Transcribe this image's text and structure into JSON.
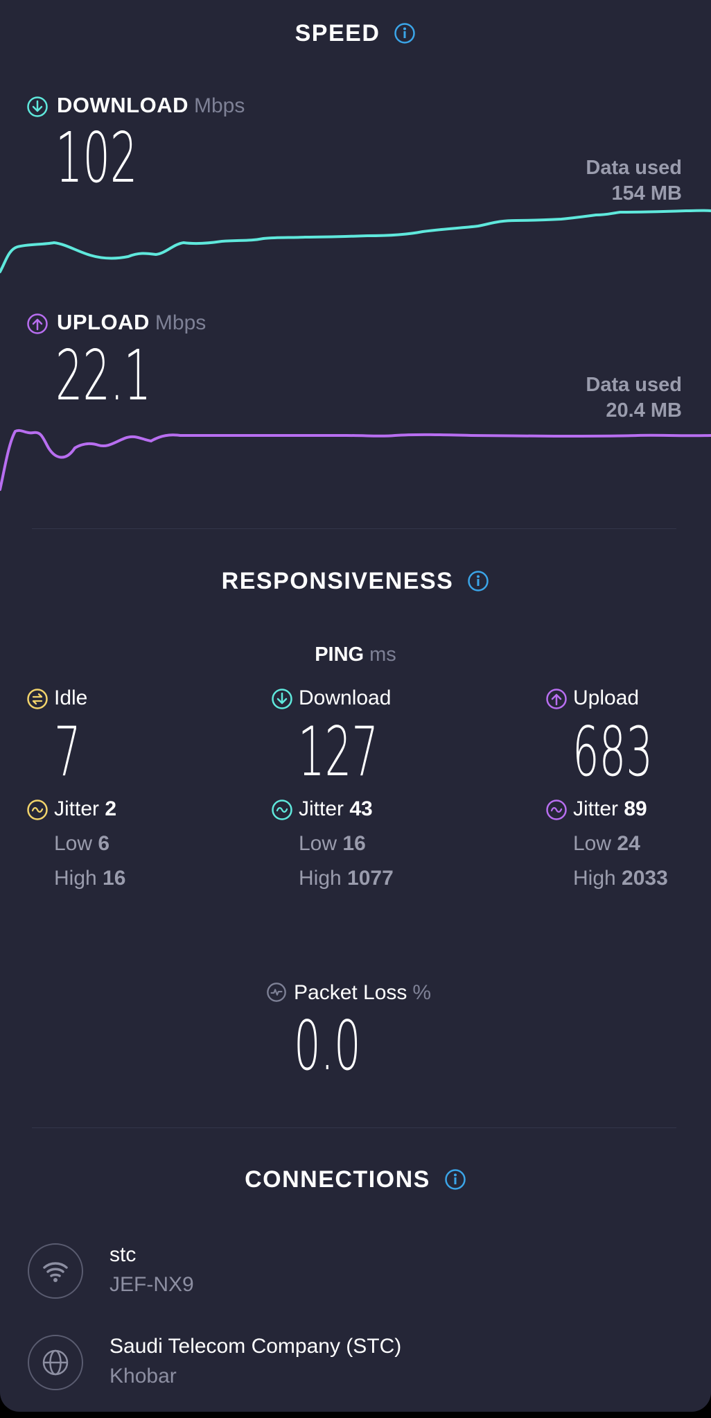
{
  "speed": {
    "title": "SPEED",
    "download": {
      "label": "DOWNLOAD",
      "unit": "Mbps",
      "value": "102",
      "data_used_label": "Data used",
      "data_used_value": "154 MB",
      "color": "#5fe8dc"
    },
    "upload": {
      "label": "UPLOAD",
      "unit": "Mbps",
      "value": "22.1",
      "data_used_label": "Data used",
      "data_used_value": "20.4 MB",
      "color": "#b86ef0"
    }
  },
  "responsiveness": {
    "title": "RESPONSIVENESS",
    "ping_label": "PING",
    "ping_unit": "ms",
    "idle": {
      "label": "Idle",
      "value": "7",
      "jitter_label": "Jitter",
      "jitter": "2",
      "low_label": "Low",
      "low": "6",
      "high_label": "High",
      "high": "16",
      "color": "#f2d46b"
    },
    "download": {
      "label": "Download",
      "value": "127",
      "jitter_label": "Jitter",
      "jitter": "43",
      "low_label": "Low",
      "low": "16",
      "high_label": "High",
      "high": "1077",
      "color": "#5fe8dc"
    },
    "upload": {
      "label": "Upload",
      "value": "683",
      "jitter_label": "Jitter",
      "jitter": "89",
      "low_label": "Low",
      "low": "24",
      "high_label": "High",
      "high": "2033",
      "color": "#b86ef0"
    },
    "packet_loss": {
      "label": "Packet Loss",
      "unit": "%",
      "value": "0.0"
    }
  },
  "connections": {
    "title": "CONNECTIONS",
    "items": [
      {
        "icon": "wifi-icon",
        "title": "stc",
        "subtitle": "JEF-NX9"
      },
      {
        "icon": "globe-icon",
        "title": "Saudi Telecom Company (STC)",
        "subtitle": "Khobar"
      }
    ]
  },
  "colors": {
    "background": "#252637",
    "info": "#3ba5e8"
  }
}
